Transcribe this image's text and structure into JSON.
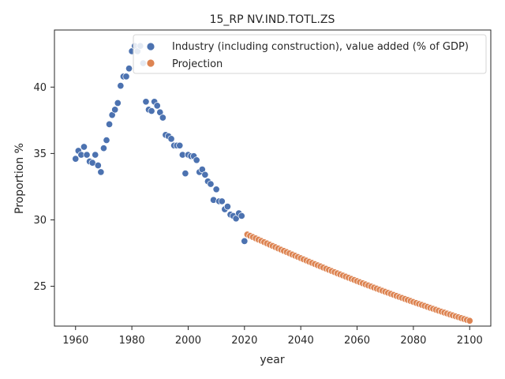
{
  "chart_data": {
    "type": "scatter",
    "title": "15_RP NV.IND.TOTL.ZS",
    "xlabel": "year",
    "ylabel": "Proportion %",
    "xlim": [
      1952.5,
      2107.5
    ],
    "ylim": [
      22.0,
      44.3
    ],
    "xticks": [
      1960,
      1980,
      2000,
      2020,
      2040,
      2060,
      2080,
      2100
    ],
    "yticks": [
      25,
      30,
      35,
      40
    ],
    "grid": false,
    "legend_position": "top-right",
    "series": [
      {
        "name": "Industry (including construction), value added (% of GDP)",
        "color": "#4c72b0",
        "x": [
          1960,
          1961,
          1962,
          1963,
          1964,
          1965,
          1966,
          1967,
          1968,
          1969,
          1970,
          1971,
          1972,
          1973,
          1974,
          1975,
          1976,
          1977,
          1978,
          1979,
          1980,
          1981,
          1982,
          1983,
          1984,
          1985,
          1986,
          1987,
          1988,
          1989,
          1990,
          1991,
          1992,
          1993,
          1994,
          1995,
          1996,
          1997,
          1998,
          1999,
          2000,
          2001,
          2002,
          2003,
          2004,
          2005,
          2006,
          2007,
          2008,
          2009,
          2010,
          2011,
          2012,
          2013,
          2014,
          2015,
          2016,
          2017,
          2018,
          2019,
          2020,
          2021
        ],
        "y": [
          34.6,
          35.2,
          34.9,
          35.5,
          34.9,
          34.4,
          34.3,
          34.9,
          34.1,
          33.6,
          35.4,
          36.0,
          37.2,
          37.9,
          38.3,
          38.8,
          40.1,
          40.8,
          40.8,
          41.4,
          42.7,
          43.1,
          42.7,
          43.1,
          41.8,
          38.9,
          38.3,
          38.2,
          38.9,
          38.6,
          38.1,
          37.7,
          36.4,
          36.3,
          36.1,
          35.6,
          35.6,
          35.6,
          34.9,
          33.5,
          34.9,
          34.8,
          34.8,
          34.5,
          33.6,
          33.8,
          33.4,
          32.9,
          32.7,
          31.5,
          32.3,
          31.4,
          31.4,
          30.8,
          31.0,
          30.4,
          30.3,
          30.1,
          30.5,
          30.3,
          28.4,
          28.9
        ]
      },
      {
        "name": "Projection",
        "color": "#dd8452",
        "x_start": 2021,
        "x_end": 2100,
        "y_start": 28.9,
        "y_end": 22.4,
        "curvature": -0.6
      }
    ]
  }
}
